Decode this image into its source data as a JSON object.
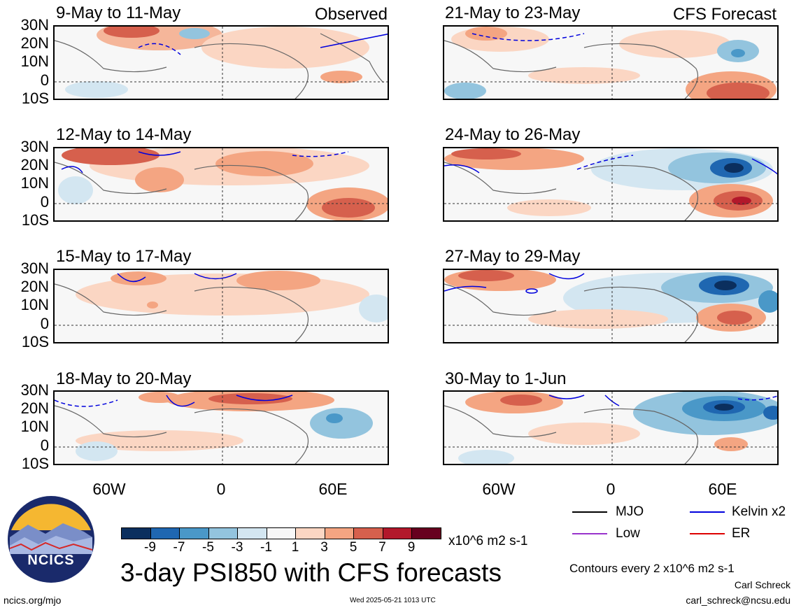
{
  "panel_labels": {
    "observed": "Observed",
    "forecast": "CFS Forecast"
  },
  "panels": [
    {
      "title": "9-May to 11-May"
    },
    {
      "title": "12-May to 14-May"
    },
    {
      "title": "15-May to 17-May"
    },
    {
      "title": "18-May to 20-May"
    },
    {
      "title": "21-May to 23-May"
    },
    {
      "title": "24-May to 26-May"
    },
    {
      "title": "27-May to 29-May"
    },
    {
      "title": "30-May to 1-Jun"
    }
  ],
  "lat_labels": [
    "30N",
    "20N",
    "10N",
    "0",
    "10S"
  ],
  "lon_labels": [
    "60W",
    "0",
    "60E"
  ],
  "colorbar": {
    "colors": [
      "#0b2f5e",
      "#1f67b1",
      "#4a98c8",
      "#93c4de",
      "#d3e6f1",
      "#f7f7f7",
      "#fbd6c3",
      "#f4a582",
      "#d6604d",
      "#b2182b",
      "#67001f"
    ],
    "labels": [
      "-9",
      "-7",
      "-5",
      "-3",
      "-1",
      "1",
      "3",
      "5",
      "7",
      "9"
    ],
    "units": "x10^6 m2 s-1"
  },
  "legend": [
    {
      "label": "MJO",
      "color": "#000000"
    },
    {
      "label": "Kelvin x2",
      "color": "#0000dd"
    },
    {
      "label": "Low",
      "color": "#9933cc"
    },
    {
      "label": "ER",
      "color": "#dd0000"
    }
  ],
  "main_title": "3-day PSI850 with CFS forecasts",
  "contours_note": "Contours every 2 x10^6 m2 s-1",
  "author": "Carl Schreck",
  "email": "carl_schreck@ncsu.edu",
  "website": "ncics.org/mjo",
  "timestamp": "Wed 2025-05-21 1013 UTC",
  "logo_text": "NCICS"
}
